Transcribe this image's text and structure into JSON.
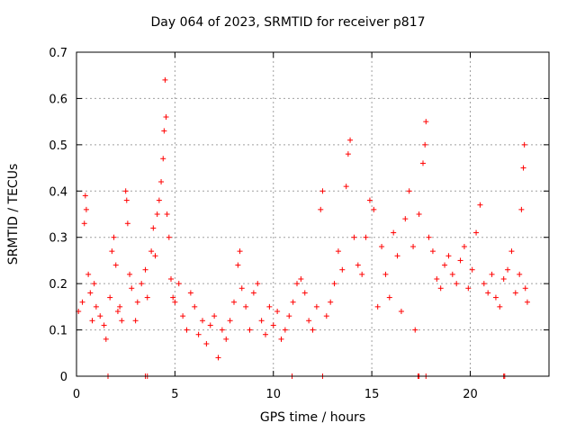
{
  "chart_data": {
    "type": "scatter",
    "title": "Day 064 of 2023, SRMTID for receiver p817",
    "xlabel": "GPS time / hours",
    "ylabel": "SRMTID / TECUs",
    "xlim": [
      0,
      24
    ],
    "ylim": [
      0,
      0.7
    ],
    "xticks": [
      0,
      5,
      10,
      15,
      20
    ],
    "yticks": [
      0,
      0.1,
      0.2,
      0.3,
      0.4,
      0.5,
      0.6,
      0.7
    ],
    "grid": true,
    "marker": "+",
    "color": "#ff0000",
    "series": [
      {
        "name": "p817",
        "points": [
          [
            0.1,
            0.14
          ],
          [
            0.3,
            0.16
          ],
          [
            0.4,
            0.33
          ],
          [
            0.45,
            0.39
          ],
          [
            0.5,
            0.36
          ],
          [
            0.6,
            0.22
          ],
          [
            0.7,
            0.18
          ],
          [
            0.8,
            0.12
          ],
          [
            0.9,
            0.2
          ],
          [
            1.0,
            0.15
          ],
          [
            1.2,
            0.13
          ],
          [
            1.4,
            0.11
          ],
          [
            1.5,
            0.08
          ],
          [
            1.7,
            0.17
          ],
          [
            1.8,
            0.27
          ],
          [
            1.9,
            0.3
          ],
          [
            2.0,
            0.24
          ],
          [
            2.1,
            0.14
          ],
          [
            2.2,
            0.15
          ],
          [
            2.3,
            0.12
          ],
          [
            2.5,
            0.4
          ],
          [
            2.55,
            0.38
          ],
          [
            2.6,
            0.33
          ],
          [
            2.7,
            0.22
          ],
          [
            2.8,
            0.19
          ],
          [
            3.0,
            0.12
          ],
          [
            3.1,
            0.16
          ],
          [
            3.3,
            0.2
          ],
          [
            3.5,
            0.23
          ],
          [
            3.6,
            0.17
          ],
          [
            3.8,
            0.27
          ],
          [
            3.9,
            0.32
          ],
          [
            4.0,
            0.26
          ],
          [
            4.1,
            0.35
          ],
          [
            4.2,
            0.38
          ],
          [
            4.3,
            0.42
          ],
          [
            4.4,
            0.47
          ],
          [
            4.45,
            0.53
          ],
          [
            4.5,
            0.64
          ],
          [
            4.55,
            0.56
          ],
          [
            4.6,
            0.35
          ],
          [
            4.7,
            0.3
          ],
          [
            4.8,
            0.21
          ],
          [
            4.9,
            0.17
          ],
          [
            5.0,
            0.16
          ],
          [
            5.2,
            0.2
          ],
          [
            5.4,
            0.13
          ],
          [
            5.6,
            0.1
          ],
          [
            5.8,
            0.18
          ],
          [
            6.0,
            0.15
          ],
          [
            6.2,
            0.09
          ],
          [
            6.4,
            0.12
          ],
          [
            6.6,
            0.07
          ],
          [
            6.8,
            0.11
          ],
          [
            7.0,
            0.13
          ],
          [
            7.2,
            0.04
          ],
          [
            7.4,
            0.1
          ],
          [
            7.6,
            0.08
          ],
          [
            7.8,
            0.12
          ],
          [
            8.0,
            0.16
          ],
          [
            8.2,
            0.24
          ],
          [
            8.3,
            0.27
          ],
          [
            8.4,
            0.19
          ],
          [
            8.6,
            0.15
          ],
          [
            8.8,
            0.1
          ],
          [
            9.0,
            0.18
          ],
          [
            9.2,
            0.2
          ],
          [
            9.4,
            0.12
          ],
          [
            9.6,
            0.09
          ],
          [
            9.8,
            0.15
          ],
          [
            10.0,
            0.11
          ],
          [
            10.2,
            0.14
          ],
          [
            10.4,
            0.08
          ],
          [
            10.6,
            0.1
          ],
          [
            10.8,
            0.13
          ],
          [
            11.0,
            0.16
          ],
          [
            11.2,
            0.2
          ],
          [
            11.4,
            0.21
          ],
          [
            11.6,
            0.18
          ],
          [
            11.8,
            0.12
          ],
          [
            12.0,
            0.1
          ],
          [
            12.2,
            0.15
          ],
          [
            12.4,
            0.36
          ],
          [
            12.5,
            0.4
          ],
          [
            12.7,
            0.13
          ],
          [
            12.9,
            0.16
          ],
          [
            13.1,
            0.2
          ],
          [
            13.3,
            0.27
          ],
          [
            13.5,
            0.23
          ],
          [
            13.7,
            0.41
          ],
          [
            13.8,
            0.48
          ],
          [
            13.9,
            0.51
          ],
          [
            14.1,
            0.3
          ],
          [
            14.3,
            0.24
          ],
          [
            14.5,
            0.22
          ],
          [
            14.7,
            0.3
          ],
          [
            14.9,
            0.38
          ],
          [
            15.1,
            0.36
          ],
          [
            15.3,
            0.15
          ],
          [
            15.5,
            0.28
          ],
          [
            15.7,
            0.22
          ],
          [
            15.9,
            0.17
          ],
          [
            16.1,
            0.31
          ],
          [
            16.3,
            0.26
          ],
          [
            16.5,
            0.14
          ],
          [
            16.7,
            0.34
          ],
          [
            16.9,
            0.4
          ],
          [
            17.1,
            0.28
          ],
          [
            17.2,
            0.1
          ],
          [
            17.4,
            0.35
          ],
          [
            17.6,
            0.46
          ],
          [
            17.7,
            0.5
          ],
          [
            17.75,
            0.55
          ],
          [
            17.9,
            0.3
          ],
          [
            18.1,
            0.27
          ],
          [
            18.3,
            0.21
          ],
          [
            18.5,
            0.19
          ],
          [
            18.7,
            0.24
          ],
          [
            18.9,
            0.26
          ],
          [
            19.1,
            0.22
          ],
          [
            19.3,
            0.2
          ],
          [
            19.5,
            0.25
          ],
          [
            19.7,
            0.28
          ],
          [
            19.9,
            0.19
          ],
          [
            20.1,
            0.23
          ],
          [
            20.3,
            0.31
          ],
          [
            20.5,
            0.37
          ],
          [
            20.7,
            0.2
          ],
          [
            20.9,
            0.18
          ],
          [
            21.1,
            0.22
          ],
          [
            21.3,
            0.17
          ],
          [
            21.5,
            0.15
          ],
          [
            21.7,
            0.21
          ],
          [
            21.9,
            0.23
          ],
          [
            22.1,
            0.27
          ],
          [
            22.3,
            0.18
          ],
          [
            22.5,
            0.22
          ],
          [
            22.6,
            0.36
          ],
          [
            22.7,
            0.45
          ],
          [
            22.75,
            0.5
          ],
          [
            22.8,
            0.19
          ],
          [
            22.9,
            0.16
          ]
        ]
      }
    ],
    "zero_markers_x": [
      1.6,
      3.5,
      3.6,
      10.95,
      12.5,
      17.35,
      17.4,
      17.75,
      21.7,
      21.75
    ]
  }
}
